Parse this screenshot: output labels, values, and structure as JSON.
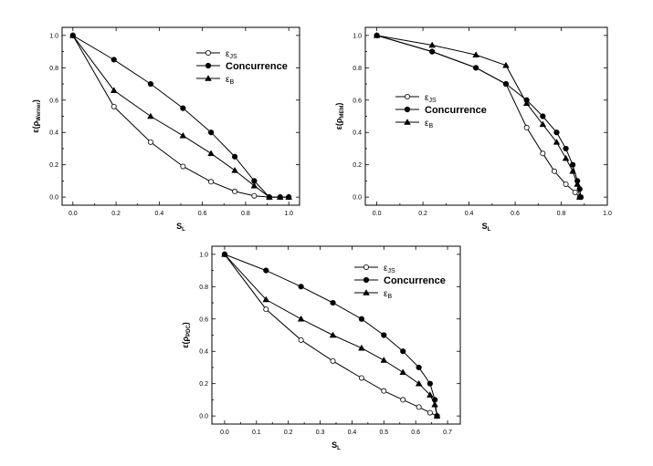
{
  "chart_data": [
    {
      "type": "line",
      "xlabel": "S_L",
      "ylabel": "ε(ρ_Werner)",
      "xlim": [
        -0.05,
        1.05
      ],
      "ylim": [
        -0.05,
        1.05
      ],
      "xticks": [
        "0.0",
        "0.2",
        "0.4",
        "0.6",
        "0.8",
        "1.0"
      ],
      "yticks": [
        "0.0",
        "0.2",
        "0.4",
        "0.6",
        "0.8",
        "1.0"
      ],
      "legend_position": "top-right",
      "series": [
        {
          "name": "ε_JS",
          "marker": "open-circle",
          "x": [
            0.0,
            0.19,
            0.36,
            0.51,
            0.64,
            0.75,
            0.84,
            0.91,
            1.0
          ],
          "y": [
            1.0,
            0.56,
            0.34,
            0.19,
            0.095,
            0.035,
            0.008,
            0.0,
            0.0
          ]
        },
        {
          "name": "Concurrence",
          "marker": "filled-circle",
          "x": [
            0.0,
            0.19,
            0.36,
            0.51,
            0.64,
            0.75,
            0.84,
            0.91,
            0.96,
            1.0
          ],
          "y": [
            1.0,
            0.85,
            0.7,
            0.55,
            0.4,
            0.25,
            0.1,
            0.0,
            0.0,
            0.0
          ]
        },
        {
          "name": "ε_B",
          "marker": "filled-triangle",
          "x": [
            0.0,
            0.19,
            0.36,
            0.51,
            0.64,
            0.75,
            0.84,
            0.91,
            0.96,
            1.0
          ],
          "y": [
            1.0,
            0.66,
            0.5,
            0.38,
            0.27,
            0.165,
            0.07,
            0.0,
            0.0,
            0.0
          ]
        }
      ]
    },
    {
      "type": "line",
      "xlabel": "S_L",
      "ylabel": "ε(ρ_MEM)",
      "xlim": [
        -0.05,
        1.0
      ],
      "ylim": [
        -0.05,
        1.05
      ],
      "xticks": [
        "0.0",
        "0.2",
        "0.4",
        "0.6",
        "0.8",
        "1.0"
      ],
      "yticks": [
        "0.0",
        "0.2",
        "0.4",
        "0.6",
        "0.8",
        "1.0"
      ],
      "legend_position": "middle-left",
      "series": [
        {
          "name": "ε_JS",
          "marker": "open-circle",
          "x": [
            0.0,
            0.24,
            0.43,
            0.56,
            0.65,
            0.72,
            0.77,
            0.82,
            0.86,
            0.88
          ],
          "y": [
            1.0,
            0.9,
            0.8,
            0.7,
            0.43,
            0.27,
            0.16,
            0.08,
            0.03,
            0.0
          ]
        },
        {
          "name": "Concurrence",
          "marker": "filled-circle",
          "x": [
            0.0,
            0.24,
            0.43,
            0.56,
            0.65,
            0.72,
            0.78,
            0.82,
            0.85,
            0.87,
            0.88,
            0.885
          ],
          "y": [
            1.0,
            0.9,
            0.8,
            0.7,
            0.6,
            0.5,
            0.4,
            0.3,
            0.2,
            0.1,
            0.05,
            0.0
          ]
        },
        {
          "name": "ε_B",
          "marker": "filled-triangle",
          "x": [
            0.0,
            0.24,
            0.43,
            0.56,
            0.65,
            0.72,
            0.78,
            0.82,
            0.85,
            0.87,
            0.88
          ],
          "y": [
            1.0,
            0.94,
            0.88,
            0.815,
            0.58,
            0.45,
            0.34,
            0.24,
            0.16,
            0.08,
            0.0
          ]
        }
      ]
    },
    {
      "type": "line",
      "xlabel": "S_L",
      "ylabel": "ε(ρ_PDC)",
      "xlim": [
        -0.04,
        0.74
      ],
      "ylim": [
        -0.05,
        1.05
      ],
      "xticks": [
        "0.0",
        "0.1",
        "0.2",
        "0.3",
        "0.4",
        "0.5",
        "0.6",
        "0.7"
      ],
      "yticks": [
        "0.0",
        "0.2",
        "0.4",
        "0.6",
        "0.8",
        "1.0"
      ],
      "legend_position": "top-right",
      "series": [
        {
          "name": "ε_JS",
          "marker": "open-circle",
          "x": [
            0.0,
            0.13,
            0.24,
            0.34,
            0.43,
            0.5,
            0.56,
            0.61,
            0.645,
            0.667
          ],
          "y": [
            1.0,
            0.66,
            0.47,
            0.34,
            0.235,
            0.155,
            0.1,
            0.055,
            0.02,
            0.0
          ]
        },
        {
          "name": "Concurrence",
          "marker": "filled-circle",
          "x": [
            0.0,
            0.13,
            0.24,
            0.34,
            0.43,
            0.5,
            0.56,
            0.61,
            0.645,
            0.66,
            0.667
          ],
          "y": [
            1.0,
            0.9,
            0.8,
            0.7,
            0.6,
            0.5,
            0.4,
            0.3,
            0.2,
            0.1,
            0.0
          ]
        },
        {
          "name": "ε_B",
          "marker": "filled-triangle",
          "x": [
            0.0,
            0.13,
            0.24,
            0.34,
            0.43,
            0.5,
            0.56,
            0.61,
            0.645,
            0.66,
            0.667
          ],
          "y": [
            1.0,
            0.72,
            0.6,
            0.5,
            0.42,
            0.345,
            0.27,
            0.2,
            0.13,
            0.07,
            0.0
          ]
        }
      ]
    }
  ]
}
